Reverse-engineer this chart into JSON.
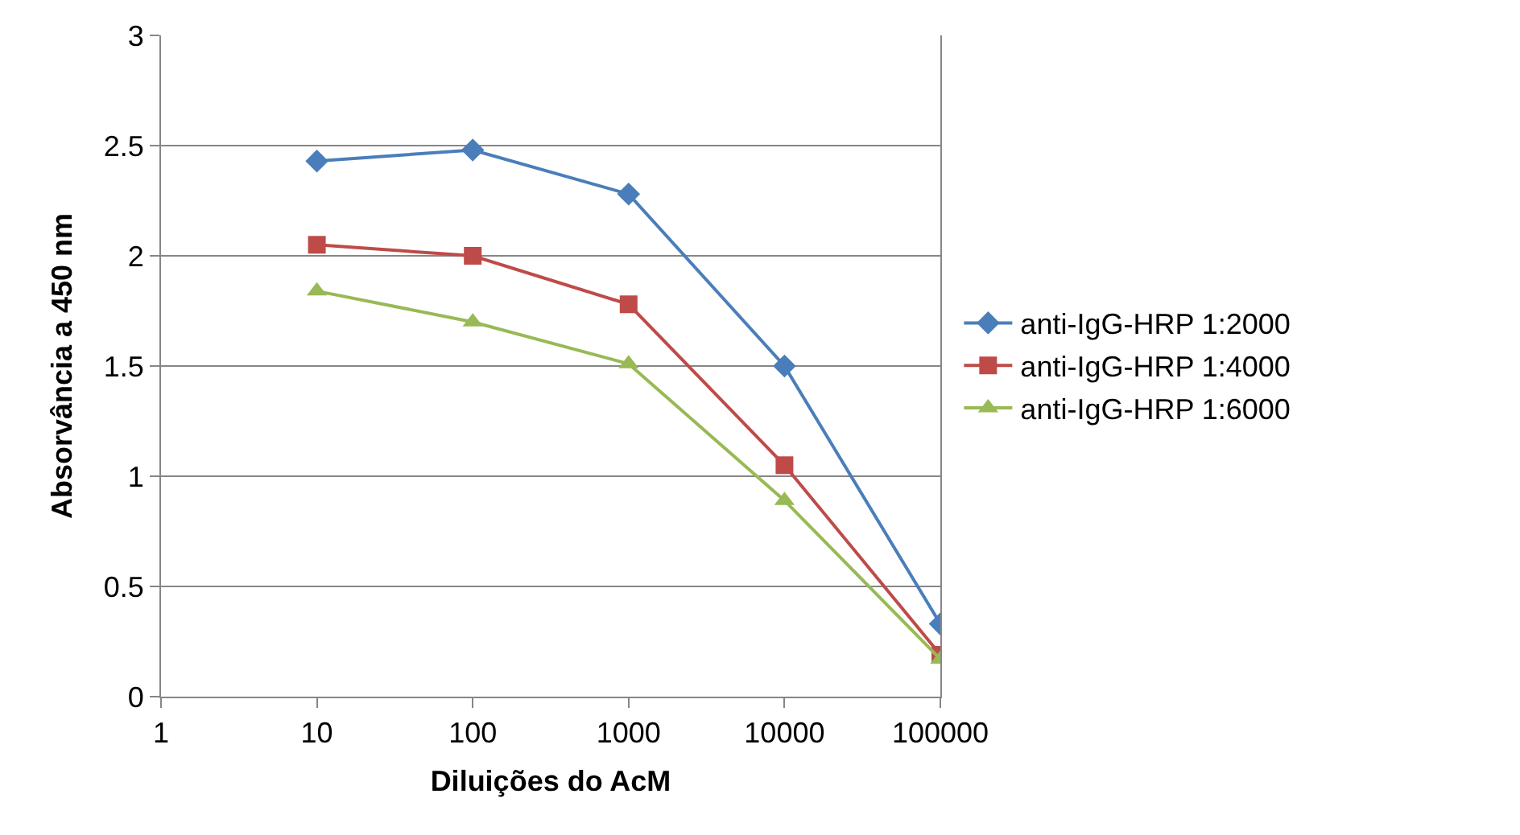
{
  "chart_data": {
    "type": "line",
    "xlabel": "Diluições do AcM",
    "ylabel": "Absorvância a 450 nm",
    "x": [
      10,
      100,
      1000,
      10000,
      100000
    ],
    "log": "x",
    "xlim": [
      1,
      100000
    ],
    "xticks": [
      1,
      10,
      100,
      1000,
      10000,
      100000
    ],
    "ylim": [
      0,
      3
    ],
    "yticks": [
      0,
      0.5,
      1,
      1.5,
      2,
      2.5,
      3
    ],
    "grid": "y",
    "legend": "right",
    "line_style": "solid",
    "series": [
      {
        "name": "anti-IgG-HRP 1:2000",
        "color": "#4a7ebb",
        "marker": "diamond",
        "values": [
          2.43,
          2.48,
          2.28,
          1.5,
          0.33
        ]
      },
      {
        "name": "anti-IgG-HRP 1:4000",
        "color": "#be4b48",
        "marker": "square",
        "values": [
          2.05,
          2.0,
          1.78,
          1.05,
          0.19
        ]
      },
      {
        "name": "anti-IgG-HRP 1:6000",
        "color": "#98b954",
        "marker": "triangle",
        "values": [
          1.84,
          1.7,
          1.51,
          0.89,
          0.17
        ]
      }
    ]
  }
}
